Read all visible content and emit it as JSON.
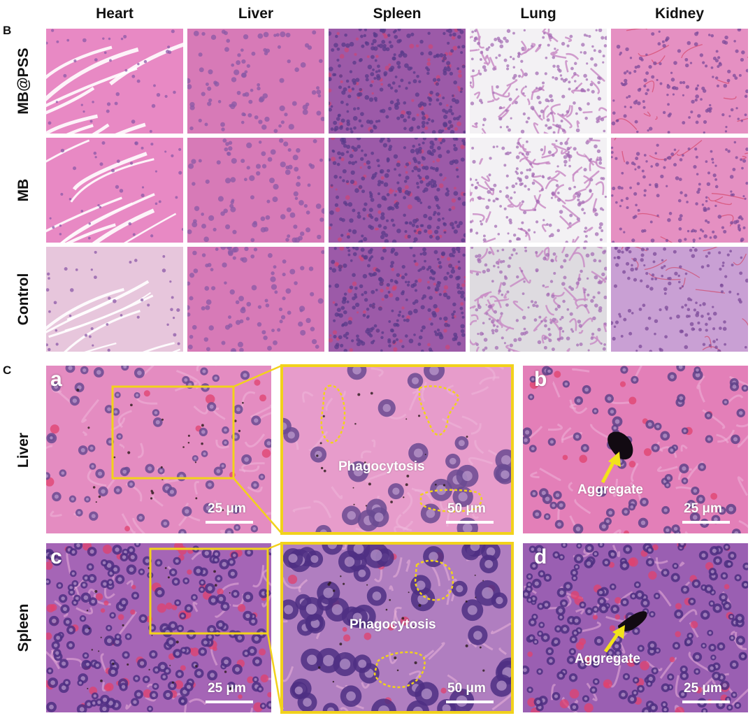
{
  "panel_b": {
    "letter": "B",
    "columns": [
      "Heart",
      "Liver",
      "Spleen",
      "Lung",
      "Kidney"
    ],
    "rows": [
      "MB@PSS",
      "MB",
      "Control"
    ]
  },
  "panel_c": {
    "letter": "C",
    "row_labels": [
      "Liver",
      "Spleen"
    ],
    "sub_a": "a",
    "sub_b": "b",
    "sub_c": "c",
    "sub_d": "d",
    "phagocytosis_label": "Phagocytosis",
    "aggregate_label": "Aggregate",
    "scale_25": "25 μm",
    "scale_50": "50 μm"
  },
  "colors": {
    "highlight": "#f2d21b",
    "arrow": "#f2e21b",
    "tissue_pink": "#e07fb5",
    "nuclei_purple": "#5b3a8c"
  }
}
